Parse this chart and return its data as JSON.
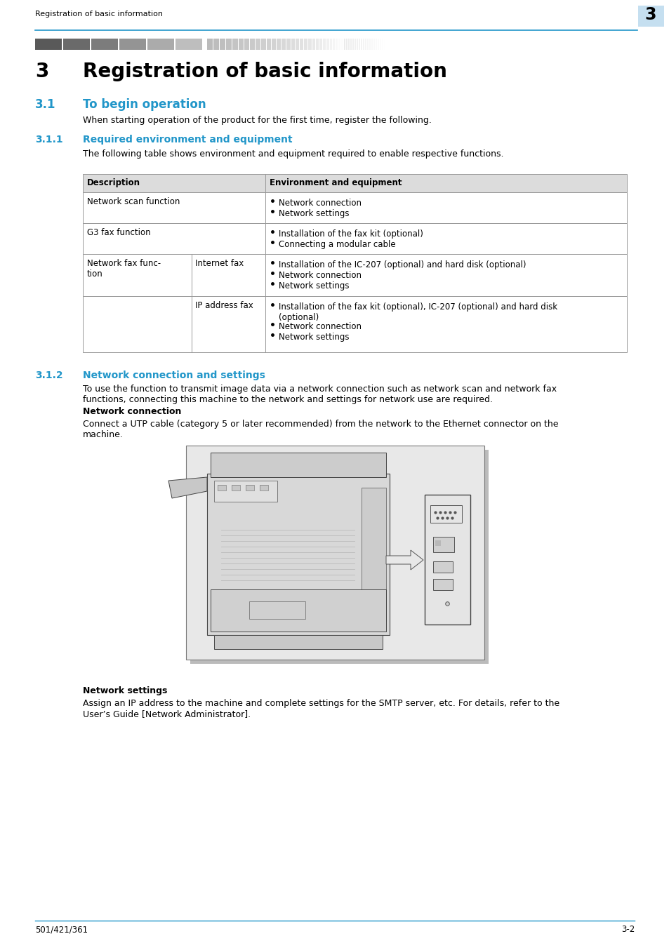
{
  "page_title": "Registration of basic information",
  "chapter_number": "3",
  "chapter_title": "Registration of basic information",
  "section_31_num": "3.1",
  "section_31_title": "To begin operation",
  "section_31_text": "When starting operation of the product for the first time, register the following.",
  "section_311_num": "3.1.1",
  "section_311_title": "Required environment and equipment",
  "section_311_text": "The following table shows environment and equipment required to enable respective functions.",
  "table_header_col1": "Description",
  "table_header_col2": "Environment and equipment",
  "table_rows": [
    {
      "col1a": "Network scan function",
      "col1b": "",
      "col2": [
        "Network connection",
        "Network settings"
      ],
      "has_sub": false
    },
    {
      "col1a": "G3 fax function",
      "col1b": "",
      "col2": [
        "Installation of the fax kit (optional)",
        "Connecting a modular cable"
      ],
      "has_sub": false
    },
    {
      "col1a": "Network fax func-\ntion",
      "col1b": "Internet fax",
      "col2": [
        "Installation of the IC-207 (optional) and hard disk (optional)",
        "Network connection",
        "Network settings"
      ],
      "has_sub": true
    },
    {
      "col1a": "",
      "col1b": "IP address fax",
      "col2": [
        "Installation of the fax kit (optional), IC-207 (optional) and hard disk\n(optional)",
        "Network connection",
        "Network settings"
      ],
      "has_sub": true
    }
  ],
  "section_312_num": "3.1.2",
  "section_312_title": "Network connection and settings",
  "section_312_text": "To use the function to transmit image data via a network connection such as network scan and network fax\nfunctions, connecting this machine to the network and settings for network use are required.",
  "net_connection_title": "Network connection",
  "net_connection_text": "Connect a UTP cable (category 5 or later recommended) from the network to the Ethernet connector on the\nmachine.",
  "net_settings_title": "Network settings",
  "net_settings_text": "Assign an IP address to the machine and complete settings for the SMTP server, etc. For details, refer to the\nUser’s Guide [Network Administrator].",
  "footer_left": "501/421/361",
  "footer_right": "3-2",
  "accent_color": "#2196C9",
  "header_bg": "#C5DFF0",
  "table_header_bg": "#DCDCDC",
  "table_border_color": "#999999",
  "page_bg": "#FFFFFF",
  "text_color": "#000000"
}
